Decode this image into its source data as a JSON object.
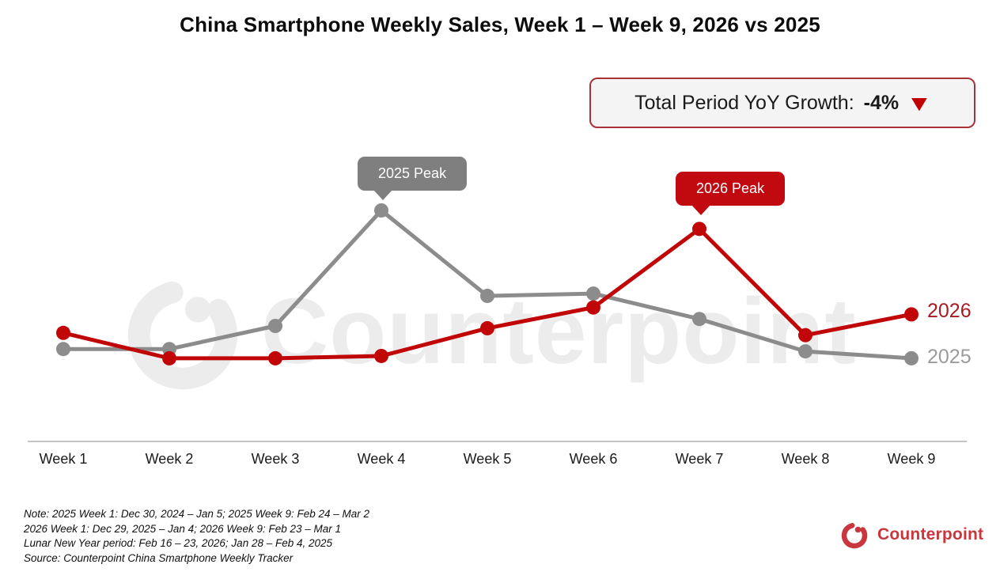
{
  "title": "China Smartphone Weekly Sales, Week 1 – Week 9, 2026 vs 2025",
  "badge": {
    "label": "Total Period YoY Growth:",
    "value": "-4%",
    "direction": "down",
    "triangle_color": "#c00000",
    "border_color": "#a83238",
    "background": "#f4f4f4"
  },
  "watermark": {
    "text": "Counterpoint"
  },
  "annotations": [
    {
      "label": "2025 Peak",
      "week": "Week 4",
      "series": "2025",
      "color": "#7f7f7f"
    },
    {
      "label": "2026 Peak",
      "week": "Week 7",
      "series": "2026",
      "color": "#c00a0f"
    }
  ],
  "notes": [
    "Note: 2025 Week 1: Dec 30, 2024 – Jan 5; 2025 Week 9: Feb 24 – Mar 2",
    "2026 Week 1: Dec 29, 2025 – Jan 4; 2026 Week 9: Feb 23 – Mar 1",
    "Lunar New Year period: Feb 16 – 23, 2026; Jan 28 – Feb 4, 2025",
    "Source: Counterpoint China Smartphone Weekly Tracker"
  ],
  "logo": {
    "text": "Counterpoint",
    "color": "#c9363e"
  },
  "colors": {
    "series_2026": "#c00606",
    "series_2025": "#8c8c8c",
    "series_label_2026": "#a51d21",
    "series_label_2025": "#9b9b9b",
    "axis_line": "#c4c4c4"
  },
  "chart_data": {
    "type": "line",
    "title": "China Smartphone Weekly Sales, Week 1 – Week 9, 2026 vs 2025",
    "categories": [
      "Week 1",
      "Week 2",
      "Week 3",
      "Week 4",
      "Week 5",
      "Week 6",
      "Week 7",
      "Week 8",
      "Week 9"
    ],
    "series": [
      {
        "name": "2026",
        "color": "#c00606",
        "values": [
          47,
          36,
          36,
          37,
          49,
          58,
          92,
          46,
          55
        ],
        "peak_week": "Week 7"
      },
      {
        "name": "2025",
        "color": "#8c8c8c",
        "values": [
          40,
          40,
          50,
          100,
          63,
          64,
          53,
          39,
          36
        ],
        "peak_week": "Week 4"
      }
    ],
    "xlabel": "",
    "ylabel": "",
    "y_axis_visible": false,
    "unit": "relative weekly sales index (estimated from chart geometry, 2025 Week 4 peak = 100)",
    "ylim": [
      0,
      110
    ],
    "grid": false,
    "legend_position": "right-end-of-lines",
    "total_period_yoy_growth": "-4%"
  }
}
